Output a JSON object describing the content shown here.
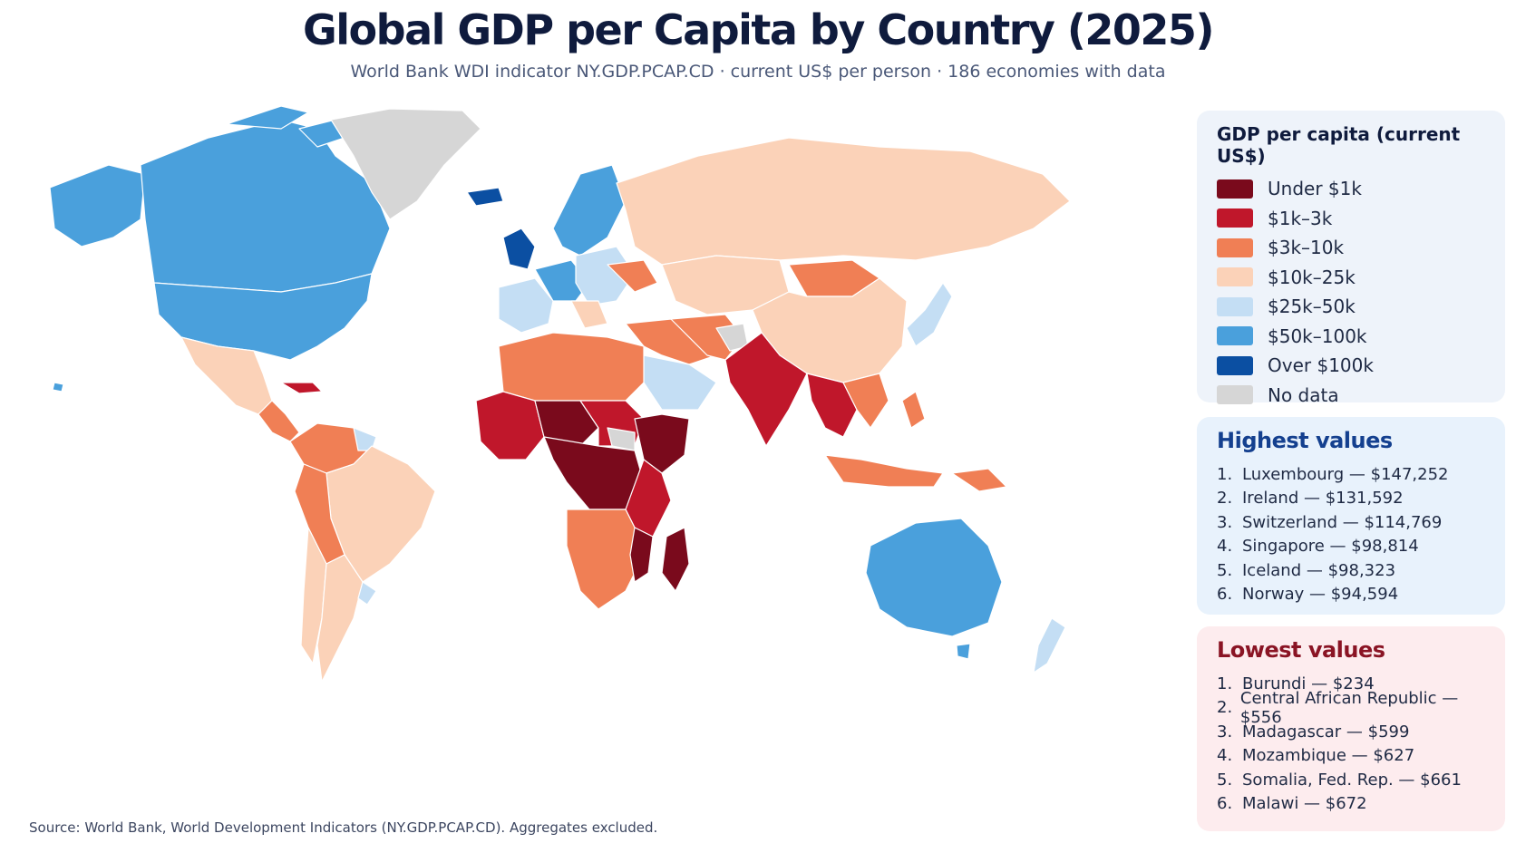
{
  "header": {
    "title": "Global GDP per Capita by Country (2025)",
    "subtitle": "World Bank WDI indicator NY.GDP.PCAP.CD · current US$ per person · 186 economies with data"
  },
  "source": "Source: World Bank, World Development Indicators (NY.GDP.PCAP.CD). Aggregates excluded.",
  "legend": {
    "title": "GDP per capita (current US$)",
    "items": [
      {
        "label": "Under $1k",
        "color": "#7a0a1c"
      },
      {
        "label": "$1k–3k",
        "color": "#c0172b"
      },
      {
        "label": "$3k–10k",
        "color": "#f07f55"
      },
      {
        "label": "$10k–25k",
        "color": "#fbd2b8"
      },
      {
        "label": "$25k–50k",
        "color": "#c4def4"
      },
      {
        "label": "$50k–100k",
        "color": "#4aa0dc"
      },
      {
        "label": "Over $100k",
        "color": "#0b4fa2"
      },
      {
        "label": "No data",
        "color": "#d6d6d6"
      }
    ]
  },
  "highest": {
    "title": "Highest values",
    "items": [
      {
        "rank": "1.",
        "text": "Luxembourg — $147,252"
      },
      {
        "rank": "2.",
        "text": "Ireland — $131,592"
      },
      {
        "rank": "3.",
        "text": "Switzerland — $114,769"
      },
      {
        "rank": "4.",
        "text": "Singapore — $98,814"
      },
      {
        "rank": "5.",
        "text": "Iceland — $98,323"
      },
      {
        "rank": "6.",
        "text": "Norway — $94,594"
      }
    ]
  },
  "lowest": {
    "title": "Lowest values",
    "items": [
      {
        "rank": "1.",
        "text": "Burundi — $234"
      },
      {
        "rank": "2.",
        "text": "Central African Republic — $556"
      },
      {
        "rank": "3.",
        "text": "Madagascar — $599"
      },
      {
        "rank": "4.",
        "text": "Mozambique — $627"
      },
      {
        "rank": "5.",
        "text": "Somalia, Fed. Rep. — $661"
      },
      {
        "rank": "6.",
        "text": "Malawi — $672"
      }
    ]
  },
  "map": {
    "regions": [
      {
        "name": "canada",
        "cls": "c5"
      },
      {
        "name": "usa",
        "cls": "c5"
      },
      {
        "name": "alaska",
        "cls": "c5"
      },
      {
        "name": "greenland",
        "cls": "nd"
      },
      {
        "name": "mexico",
        "cls": "c3"
      },
      {
        "name": "central-america",
        "cls": "c2"
      },
      {
        "name": "caribbean",
        "cls": "c2"
      },
      {
        "name": "south-america-north",
        "cls": "c2"
      },
      {
        "name": "brazil",
        "cls": "c3"
      },
      {
        "name": "peru-bolivia",
        "cls": "c2"
      },
      {
        "name": "chile",
        "cls": "c3"
      },
      {
        "name": "argentina",
        "cls": "c3"
      },
      {
        "name": "uruguay",
        "cls": "c4"
      },
      {
        "name": "guyana",
        "cls": "c4"
      },
      {
        "name": "iceland",
        "cls": "c6"
      },
      {
        "name": "uk-ireland",
        "cls": "c6"
      },
      {
        "name": "scandinavia",
        "cls": "c5"
      },
      {
        "name": "western-europe",
        "cls": "c4"
      },
      {
        "name": "central-europe",
        "cls": "c5"
      },
      {
        "name": "eastern-europe",
        "cls": "c3"
      },
      {
        "name": "ukraine",
        "cls": "c2"
      },
      {
        "name": "russia",
        "cls": "c3"
      },
      {
        "name": "north-africa",
        "cls": "c2"
      },
      {
        "name": "west-africa",
        "cls": "c1"
      },
      {
        "name": "sahel",
        "cls": "c0"
      },
      {
        "name": "central-africa",
        "cls": "c0"
      },
      {
        "name": "east-africa",
        "cls": "c0"
      },
      {
        "name": "southern-africa",
        "cls": "c2"
      },
      {
        "name": "madagascar",
        "cls": "c0"
      },
      {
        "name": "arabia",
        "cls": "c4"
      },
      {
        "name": "middle-east",
        "cls": "c2"
      },
      {
        "name": "central-asia",
        "cls": "c3"
      },
      {
        "name": "mongolia",
        "cls": "c2"
      },
      {
        "name": "china",
        "cls": "c3"
      },
      {
        "name": "south-asia",
        "cls": "c1"
      },
      {
        "name": "southeast-asia",
        "cls": "c1"
      },
      {
        "name": "japan-korea",
        "cls": "c4"
      },
      {
        "name": "indonesia",
        "cls": "c2"
      },
      {
        "name": "philippines",
        "cls": "c2"
      },
      {
        "name": "png",
        "cls": "c2"
      },
      {
        "name": "australia",
        "cls": "c5"
      },
      {
        "name": "new-zealand",
        "cls": "c4"
      }
    ]
  }
}
